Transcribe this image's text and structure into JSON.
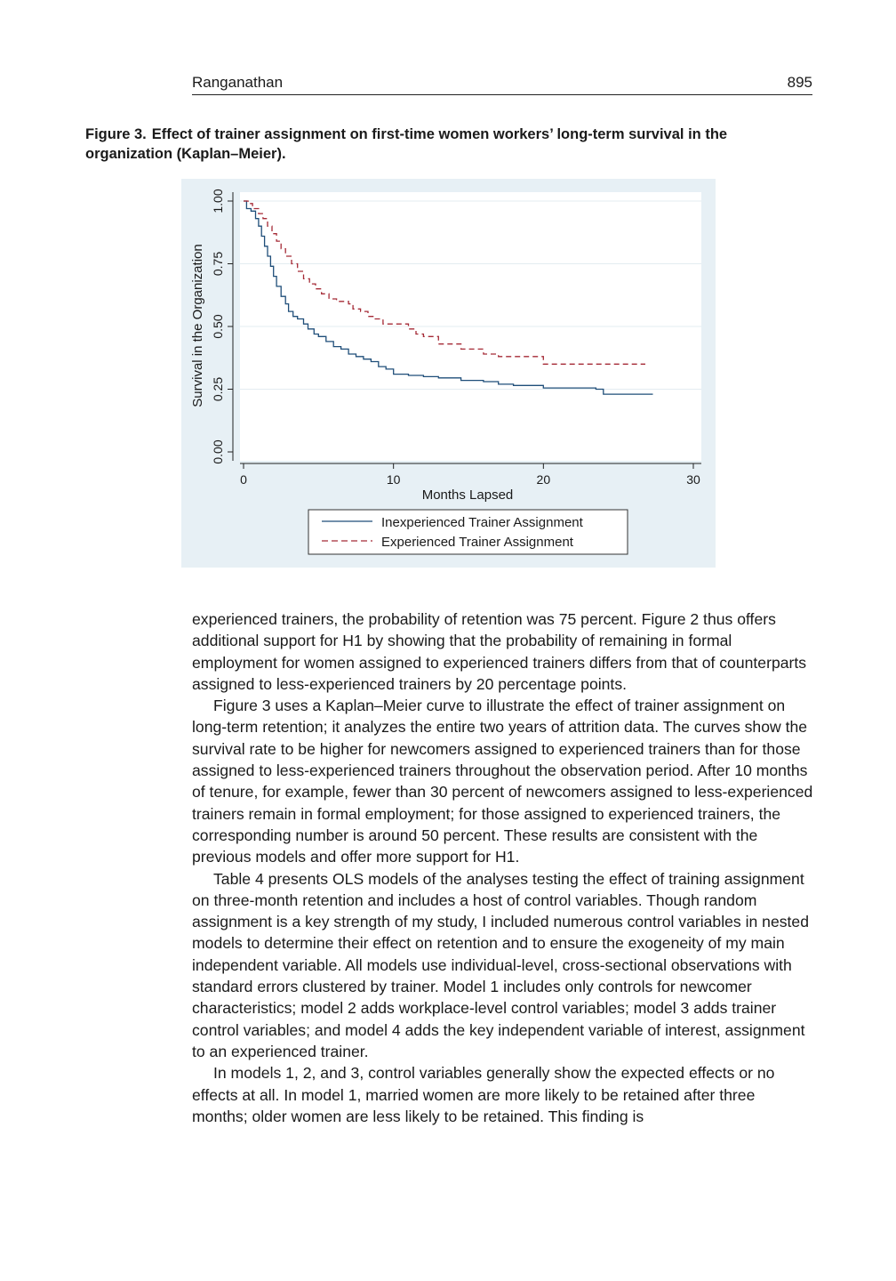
{
  "header": {
    "author": "Ranganathan",
    "page_number": "895"
  },
  "figure": {
    "label": "Figure 3.",
    "caption": "Effect of trainer assignment on first-time women workers’ long-term survival in the organization (Kaplan–Meier)."
  },
  "chart_data": {
    "type": "line",
    "step": true,
    "xlabel": "Months Lapsed",
    "ylabel": "Survival in the Organization",
    "xlim": [
      0,
      30
    ],
    "ylim": [
      0,
      1
    ],
    "x_ticks": [
      0,
      10,
      20,
      30
    ],
    "x_tick_labels": [
      "0",
      "10",
      "20",
      "30"
    ],
    "y_ticks": [
      0,
      0.25,
      0.5,
      0.75,
      1
    ],
    "y_tick_labels": [
      "0.00",
      "0.25",
      "0.50",
      "0.75",
      "1.00"
    ],
    "grid": "horizontal",
    "legend_position": "bottom",
    "series": [
      {
        "name": "Inexperienced Trainer Assignment",
        "color": "#1f4e79",
        "style": "solid",
        "x": [
          0,
          0.2,
          0.5,
          0.8,
          1.0,
          1.2,
          1.4,
          1.6,
          1.8,
          2.0,
          2.2,
          2.5,
          2.8,
          3.0,
          3.3,
          3.6,
          4.0,
          4.3,
          4.7,
          5.0,
          5.5,
          6.0,
          6.5,
          7.0,
          7.5,
          8.0,
          8.5,
          9.0,
          9.5,
          10.0,
          11.0,
          12.0,
          13.0,
          14.0,
          14.5,
          16.0,
          17.0,
          18.0,
          19.0,
          20.0,
          22.0,
          23.5,
          24.0,
          27.3
        ],
        "y": [
          1.0,
          0.97,
          0.96,
          0.93,
          0.9,
          0.86,
          0.82,
          0.78,
          0.74,
          0.7,
          0.66,
          0.62,
          0.59,
          0.56,
          0.54,
          0.53,
          0.51,
          0.49,
          0.47,
          0.46,
          0.44,
          0.42,
          0.41,
          0.39,
          0.38,
          0.37,
          0.36,
          0.34,
          0.33,
          0.31,
          0.305,
          0.3,
          0.295,
          0.295,
          0.285,
          0.28,
          0.27,
          0.265,
          0.265,
          0.255,
          0.255,
          0.25,
          0.23,
          0.23
        ]
      },
      {
        "name": "Experienced Trainer Assignment",
        "color": "#a52a36",
        "style": "dashed",
        "x": [
          0,
          0.3,
          0.6,
          1.0,
          1.3,
          1.6,
          1.9,
          2.2,
          2.5,
          2.8,
          3.2,
          3.6,
          4.0,
          4.4,
          4.8,
          5.2,
          5.7,
          6.2,
          7.0,
          7.3,
          7.8,
          8.3,
          8.7,
          9.3,
          10.5,
          11.0,
          11.5,
          12.0,
          13.0,
          14.5,
          16.0,
          16.5,
          17.0,
          19.0,
          20.0,
          21.0,
          22.0,
          25.0,
          26.0,
          26.8
        ],
        "y": [
          1.0,
          0.99,
          0.97,
          0.95,
          0.93,
          0.9,
          0.87,
          0.84,
          0.81,
          0.78,
          0.75,
          0.72,
          0.69,
          0.67,
          0.65,
          0.63,
          0.61,
          0.6,
          0.59,
          0.57,
          0.56,
          0.54,
          0.53,
          0.51,
          0.51,
          0.49,
          0.47,
          0.46,
          0.43,
          0.41,
          0.39,
          0.39,
          0.38,
          0.38,
          0.35,
          0.35,
          0.35,
          0.35,
          0.35,
          0.35
        ]
      }
    ]
  },
  "body": {
    "paragraphs": [
      "experienced trainers, the probability of retention was 75 percent. Figure 2 thus offers additional support for H1 by showing that the probability of remaining in formal employment for women assigned to experienced trainers differs from that of counterparts assigned to less-experienced trainers by 20 percentage points.",
      "Figure 3 uses a Kaplan–Meier curve to illustrate the effect of trainer assignment on long-term retention; it analyzes the entire two years of attrition data. The curves show the survival rate to be higher for newcomers assigned to experienced trainers than for those assigned to less-experienced trainers throughout the observation period. After 10 months of tenure, for example, fewer than 30 percent of newcomers assigned to less-experienced trainers remain in formal employment; for those assigned to experienced trainers, the corresponding number is around 50 percent. These results are consistent with the previous models and offer more support for H1.",
      "Table 4 presents OLS models of the analyses testing the effect of training assignment on three-month retention and includes a host of control variables. Though random assignment is a key strength of my study, I included numerous control variables in nested models to determine their effect on retention and to ensure the exogeneity of my main independent variable. All models use individual-level, cross-sectional observations with standard errors clustered by trainer. Model 1 includes only controls for newcomer characteristics; model 2 adds workplace-level control variables; model 3 adds trainer control variables; and model 4 adds the key independent variable of interest, assignment to an experienced trainer.",
      "In models 1, 2, and 3, control variables generally show the expected effects or no effects at all. In model 1, married women are more likely to be retained after three months; older women are less likely to be retained. This finding is"
    ]
  }
}
